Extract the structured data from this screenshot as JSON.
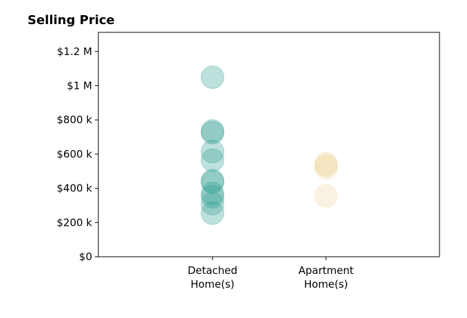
{
  "chart_data": {
    "type": "scatter",
    "title": "Selling Price",
    "xlabel": "",
    "ylabel": "",
    "ylim": [
      0,
      1200000
    ],
    "yticks": [
      0,
      200000,
      400000,
      600000,
      800000,
      1000000,
      1200000
    ],
    "ytick_labels": [
      "$0",
      "$200 k",
      "$400 k",
      "$600 k",
      "$800 k",
      "$1 M",
      "$1.2 M"
    ],
    "categories": [
      {
        "line1": "Detached",
        "line2": "Home(s)"
      },
      {
        "line1": "Apartment",
        "line2": "Home(s)"
      }
    ],
    "grid": false,
    "series": [
      {
        "category_index": 0,
        "color": "#2a9d8f",
        "values": [
          1050000,
          735000,
          725000,
          615000,
          565000,
          445000,
          435000,
          370000,
          350000,
          310000,
          255000
        ]
      },
      {
        "category_index": 1,
        "color": "#f0d8a0",
        "values": [
          545000,
          535000,
          520000,
          355000
        ]
      }
    ]
  }
}
